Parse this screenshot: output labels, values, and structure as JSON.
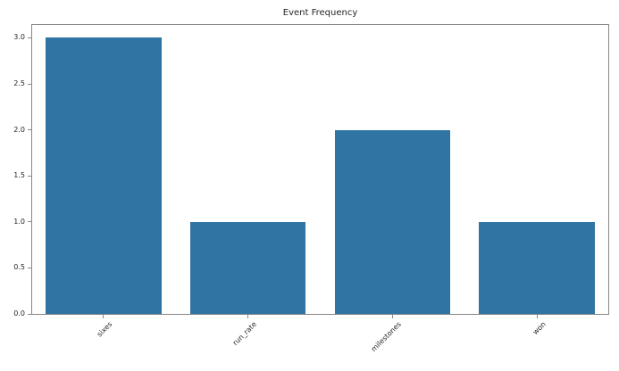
{
  "chart_data": {
    "type": "bar",
    "title": "Event Frequency",
    "categories": [
      "sixes",
      "run_rate",
      "milestones",
      "won"
    ],
    "values": [
      3,
      1,
      2,
      1
    ],
    "xlabel": "",
    "ylabel": "",
    "ylim": [
      0,
      3.15
    ],
    "yticks": [
      "0.0",
      "0.5",
      "1.0",
      "1.5",
      "2.0",
      "2.5",
      "3.0"
    ],
    "x_tick_rotation_deg": 45,
    "grid": false,
    "legend": false,
    "colors": {
      "bar": "#2f74a2",
      "spine": "#888888",
      "text": "#262626",
      "background": "#ffffff"
    }
  }
}
